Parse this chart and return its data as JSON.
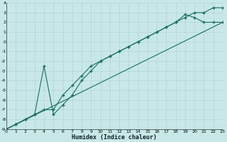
{
  "xlabel": "Humidex (Indice chaleur)",
  "bg_color": "#c8e8e8",
  "line_color": "#1a6e60",
  "grid_color": "#b0d4d4",
  "xlim": [
    0,
    23
  ],
  "ylim": [
    -9,
    4
  ],
  "xticks": [
    0,
    1,
    2,
    3,
    4,
    5,
    6,
    7,
    8,
    9,
    10,
    11,
    12,
    13,
    14,
    15,
    16,
    17,
    18,
    19,
    20,
    21,
    22,
    23
  ],
  "yticks": [
    4,
    3,
    2,
    1,
    0,
    -1,
    -2,
    -3,
    -4,
    -5,
    -6,
    -7,
    -8,
    -9
  ],
  "line1_x": [
    0,
    1,
    2,
    3,
    4,
    5,
    6,
    7,
    8,
    9,
    10,
    11,
    12,
    13,
    14,
    15,
    16,
    17,
    18,
    19,
    20,
    21,
    22,
    23
  ],
  "line1_y": [
    -9,
    -8.5,
    -8,
    -7.5,
    -7,
    -7,
    -5.5,
    -4.5,
    -3.5,
    -2.5,
    -2,
    -1.5,
    -1,
    -0.5,
    0,
    0.5,
    1,
    1.5,
    2,
    2.5,
    3,
    3,
    3.5,
    3.5
  ],
  "line2_x": [
    0,
    1,
    2,
    3,
    4,
    5,
    6,
    7,
    8,
    9,
    10,
    11,
    12,
    13,
    14,
    15,
    16,
    17,
    18,
    19,
    20,
    21,
    22,
    23
  ],
  "line2_y": [
    -9,
    -8.5,
    -8,
    -7.5,
    -2.5,
    -7.5,
    -6.5,
    -5.5,
    -4,
    -3,
    -2,
    -1.5,
    -1,
    -0.5,
    0,
    0.5,
    1,
    1.5,
    2,
    2.8,
    2.5,
    2,
    2,
    2
  ],
  "line3_x": [
    0,
    23
  ],
  "line3_y": [
    -9,
    2
  ]
}
